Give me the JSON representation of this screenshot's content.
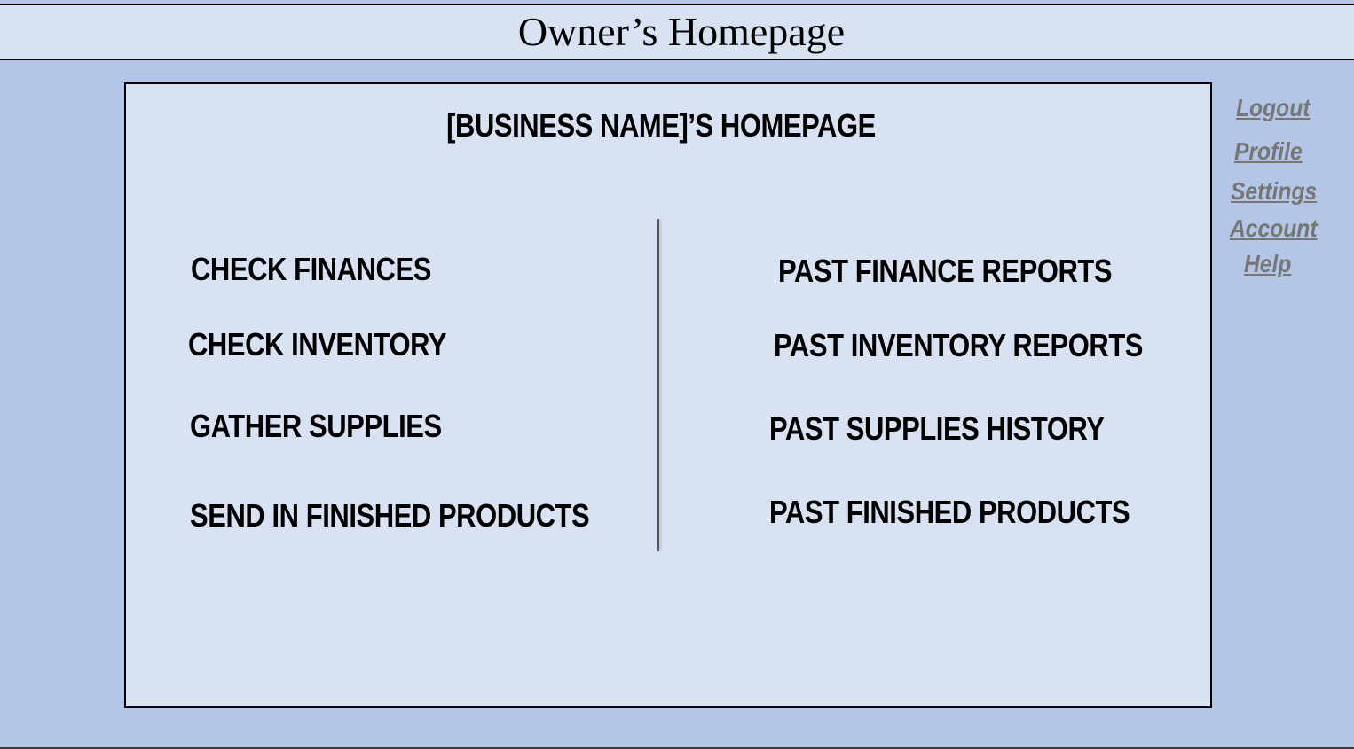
{
  "header": {
    "title": "Owner’s Homepage"
  },
  "panel": {
    "title": "[BUSINESS NAME]’S HOMEPAGE",
    "left_actions": [
      "CHECK FINANCES",
      "CHECK INVENTORY",
      "GATHER SUPPLIES",
      "SEND IN FINISHED PRODUCTS"
    ],
    "right_actions": [
      "PAST FINANCE REPORTS",
      "PAST INVENTORY REPORTS",
      "PAST SUPPLIES HISTORY",
      "PAST FINISHED PRODUCTS"
    ]
  },
  "side_links": [
    "Logout",
    "Profile",
    "Settings",
    "Account",
    "Help"
  ],
  "colors": {
    "background": "#b4c6e7",
    "panel": "#d9e2f3",
    "link": "#767676"
  }
}
